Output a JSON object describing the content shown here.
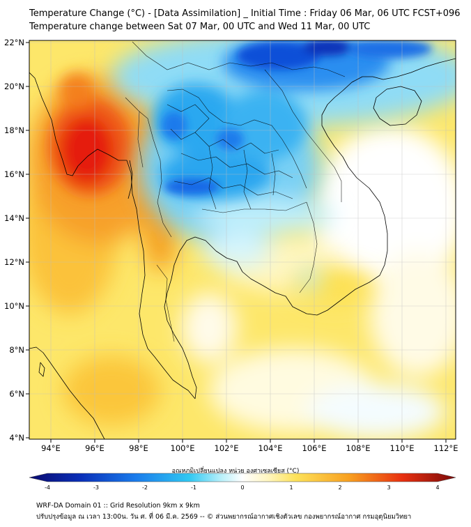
{
  "header": {
    "line1": "Temperature Change (°C) - [Data Assimilation] _ Initial Time : Friday 06 Mar, 06 UTC FCST+096",
    "line2": "Temperature change between Sat 07 Mar, 00 UTC and Wed 11 Mar, 00 UTC"
  },
  "map": {
    "lat_labels": [
      "22°N",
      "20°N",
      "18°N",
      "16°N",
      "14°N",
      "12°N",
      "10°N",
      "8°N",
      "6°N",
      "4°N"
    ],
    "lon_labels": [
      "94°E",
      "96°E",
      "98°E",
      "100°E",
      "102°E",
      "104°E",
      "106°E",
      "108°E",
      "110°E",
      "112°E"
    ],
    "lat_range": [
      4,
      22.2
    ],
    "lon_range": [
      93,
      112.4
    ]
  },
  "colorbar": {
    "title": "อุณหภูมิเปลี่ยนแปลง หน่วย องศาเซลเซียส (°C)",
    "tick_labels": [
      "-4",
      "-3",
      "-2",
      "-1",
      "0",
      "1",
      "2",
      "3",
      "4"
    ],
    "range": [
      -4,
      4
    ]
  },
  "footer": {
    "line1": "WRF-DA Domain 01 :: Grid Resolution 9km x 9km",
    "line2": "ปรับปรุงข้อมูล ณ เวลา 13:00น. วัน ศ. ที่ 06 มี.ค. 2569 -- © ส่วนพยากรณ์อากาศเชิงตัวเลข กองพยากรณ์อากาศ กรมอุตุนิยมวิทยา"
  },
  "colors": {
    "strong_warm": "#e01010",
    "warm": "#f47a18",
    "mild_warm": "#fde25a",
    "neutral": "#ffffff",
    "mild_cool": "#a8ecf8",
    "cool": "#1aa8f0",
    "strong_cool": "#0a4fe0",
    "deep_cool": "#0a1aa0",
    "coastline": "#000000"
  }
}
